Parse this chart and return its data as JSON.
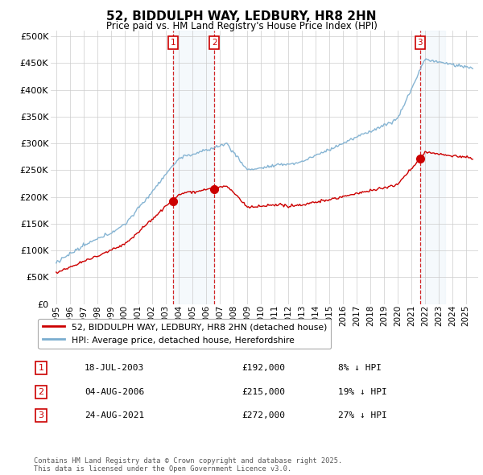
{
  "title": "52, BIDDULPH WAY, LEDBURY, HR8 2HN",
  "subtitle": "Price paid vs. HM Land Registry's House Price Index (HPI)",
  "property_label": "52, BIDDULPH WAY, LEDBURY, HR8 2HN (detached house)",
  "hpi_label": "HPI: Average price, detached house, Herefordshire",
  "transactions": [
    {
      "num": "1",
      "date": "18-JUL-2003",
      "year": 2003.54,
      "price": 192000,
      "pct": "8% ↓ HPI"
    },
    {
      "num": "2",
      "date": "04-AUG-2006",
      "year": 2006.59,
      "price": 215000,
      "pct": "19% ↓ HPI"
    },
    {
      "num": "3",
      "date": "24-AUG-2021",
      "year": 2021.64,
      "price": 272000,
      "pct": "27% ↓ HPI"
    }
  ],
  "property_color": "#cc0000",
  "hpi_color": "#7aadcf",
  "background_color": "#ffffff",
  "grid_color": "#cccccc",
  "shade_color": "#daeaf7",
  "ylim": [
    0,
    510000
  ],
  "yticks": [
    0,
    50000,
    100000,
    150000,
    200000,
    250000,
    300000,
    350000,
    400000,
    450000,
    500000
  ],
  "xlabel_years": [
    1995,
    1996,
    1997,
    1998,
    1999,
    2000,
    2001,
    2002,
    2003,
    2004,
    2005,
    2006,
    2007,
    2008,
    2009,
    2010,
    2011,
    2012,
    2013,
    2014,
    2015,
    2016,
    2017,
    2018,
    2019,
    2020,
    2021,
    2022,
    2023,
    2024,
    2025
  ],
  "footnote": "Contains HM Land Registry data © Crown copyright and database right 2025.\nThis data is licensed under the Open Government Licence v3.0."
}
